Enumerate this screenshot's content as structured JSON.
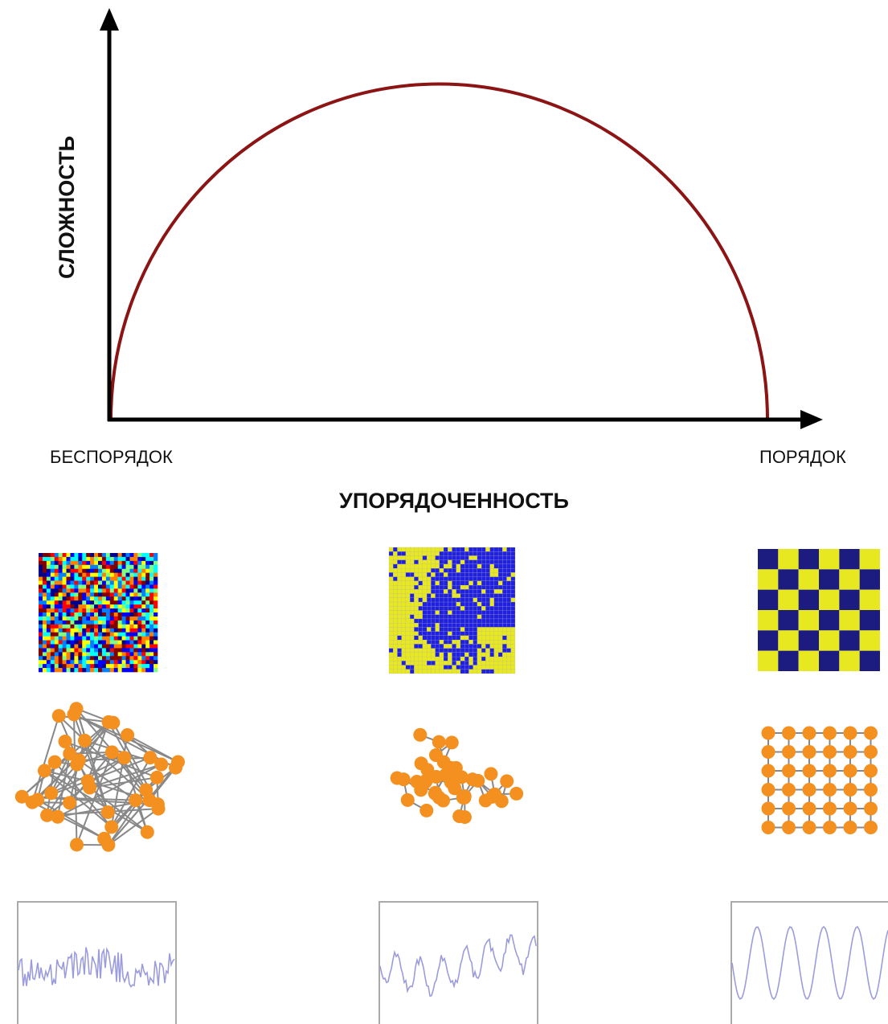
{
  "y_axis_label": "СЛОЖНОСТЬ",
  "x_axis_left_label": "БЕСПОРЯДОК",
  "x_axis_right_label": "ПОРЯДОК",
  "x_axis_title": "УПОРЯДОЧЕННОСТЬ"
}
